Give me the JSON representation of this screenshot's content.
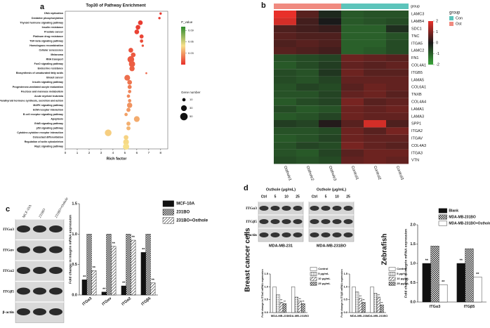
{
  "figure": {
    "panels": [
      "a",
      "b",
      "c",
      "d"
    ],
    "blot_c": {
      "columns": [
        "MCF-10A",
        "231BO",
        "231BO+Osthole"
      ],
      "rows": [
        "ITGα3",
        "ITGαv",
        "ITGα2",
        "ITGβ5",
        "β-actin"
      ]
    },
    "blot_d": {
      "groups": [
        {
          "title": "Osthole (μg/mL)",
          "cell_line": "MDA-MB-231"
        },
        {
          "title": "Osthole (μg/mL)",
          "cell_line": "MDA-MB-231BO"
        }
      ],
      "columns": [
        "Ctrl",
        "5",
        "10",
        "25"
      ],
      "rows": [
        "ITGα3",
        "ITGβ5",
        "β-actin"
      ]
    },
    "side_labels": [
      "Breast cancer cells",
      "Zebrafish"
    ]
  },
  "chart_data": [
    {
      "type": "bubble",
      "title": "Top30 of Pathway Enrichment",
      "x_label": "Rich factor",
      "categories": [
        "DNA replication",
        "Oxidative phosphorylation",
        "Thyroid hormone signaling pathway",
        "Insulin resistance",
        "Prostate cancer",
        "Platinum drug resistance",
        "TGF-beta signaling pathway",
        "Homologous recombination",
        "Cellular senescence",
        "Melanoma",
        "RNA transport",
        "FoxO signaling pathway",
        "Endocrine resistance",
        "Biosynthesis of unsaturated fatty acids",
        "Breast cancer",
        "Insulin signaling pathway",
        "Progesterone-mediated oocyte maturation",
        "Fructose and mannose metabolism",
        "Acute myeloid leukemia",
        "Parathyroid hormone synthesis, secretion and action",
        "MAPK signaling pathway",
        "ECM-receptor interaction",
        "B cell receptor signaling pathway",
        "Apoptosis",
        "ErbB signaling pathway",
        "p53 signaling pathway",
        "Cytokine-cytokine receptor interaction",
        "Osteoclast differentiation",
        "Regulation of actin cytoskeleton",
        "Rap1 signaling pathway"
      ],
      "values": [
        8.0,
        7.9,
        6.3,
        6.1,
        6.0,
        6.4,
        6.4,
        6.5,
        5.5,
        5.7,
        5.5,
        5.6,
        5.6,
        6.8,
        5.2,
        5.4,
        5.4,
        5.4,
        5.3,
        5.4,
        5.4,
        5.3,
        5.1,
        6.0,
        5.3,
        5.3,
        3.6,
        5.1,
        5.1,
        5.1
      ],
      "gene_numbers": [
        5,
        5,
        20,
        20,
        20,
        15,
        10,
        5,
        20,
        20,
        40,
        35,
        25,
        3,
        30,
        20,
        15,
        10,
        10,
        10,
        25,
        15,
        10,
        30,
        15,
        15,
        40,
        20,
        30,
        35
      ],
      "p_values": [
        0.002,
        0.003,
        0.003,
        0.004,
        0.005,
        0.006,
        0.008,
        0.01,
        0.01,
        0.012,
        0.012,
        0.013,
        0.014,
        0.015,
        0.018,
        0.02,
        0.022,
        0.024,
        0.025,
        0.027,
        0.028,
        0.03,
        0.032,
        0.035,
        0.036,
        0.038,
        0.045,
        0.046,
        0.048,
        0.05
      ],
      "xlim": [
        0,
        8.6
      ],
      "xticks": [
        0,
        1,
        2,
        3,
        4,
        5,
        6,
        7,
        8
      ],
      "color_title": "P_value",
      "colorscale": [
        "#e8302a",
        "#f7e08a",
        "#2e8b2e"
      ],
      "clim": [
        0,
        0.1
      ],
      "cticks": [
        0.03,
        0.06,
        0.09
      ],
      "size_title": "Gene number",
      "size_ticks": [
        10,
        30,
        50
      ]
    },
    {
      "type": "heatmap",
      "rows": [
        "LAMC3",
        "LAMB4",
        "SDC1",
        "TNC",
        "ITGA5",
        "LAMC2",
        "FN1",
        "COL4A1",
        "ITGB5",
        "LAMA5",
        "COL6A1",
        "TNXB",
        "COL4A4",
        "LAMA1",
        "LAMA3",
        "SPP1",
        "ITGA2",
        "ITGAV",
        "COL4A3",
        "ITGA3",
        "VTN"
      ],
      "columns": [
        "Osthole1",
        "Osthole2",
        "Osthole3",
        "Control1",
        "Control2",
        "Control3"
      ],
      "values": [
        [
          2,
          0.6,
          -0.2,
          -0.9,
          -0.8,
          -0.8
        ],
        [
          1.8,
          0.4,
          0,
          -0.9,
          -0.8,
          -0.7
        ],
        [
          0.5,
          0.4,
          0.3,
          -1,
          -1,
          -0.3
        ],
        [
          0.6,
          0.5,
          0.5,
          -1,
          -1,
          -0.8
        ],
        [
          0.5,
          0.6,
          0.5,
          -1,
          -1,
          -0.7
        ],
        [
          0.6,
          0.5,
          0.4,
          -1,
          -0.9,
          -0.7
        ],
        [
          -0.8,
          -0.7,
          -0.6,
          0.8,
          0.7,
          0.6
        ],
        [
          -0.9,
          -0.7,
          -0.5,
          0.7,
          0.6,
          0.7
        ],
        [
          -0.7,
          -0.8,
          -0.4,
          0.8,
          0.6,
          0.6
        ],
        [
          -0.7,
          -0.8,
          -0.6,
          0.7,
          0.7,
          0.7
        ],
        [
          -0.8,
          -0.6,
          -0.7,
          0.6,
          0.8,
          0.7
        ],
        [
          -0.8,
          -0.8,
          -0.6,
          0.7,
          0.8,
          0.6
        ],
        [
          -0.9,
          -0.7,
          -0.6,
          0.9,
          0.6,
          0.7
        ],
        [
          -0.7,
          -0.9,
          -0.8,
          0.8,
          0.7,
          0.8
        ],
        [
          -0.9,
          -0.8,
          -0.6,
          0.8,
          0.7,
          0.7
        ],
        [
          -0.5,
          -0.6,
          0.1,
          0.6,
          1.8,
          0.5
        ],
        [
          -0.8,
          -0.8,
          -0.7,
          0.8,
          0.6,
          0.9
        ],
        [
          -0.9,
          -0.8,
          -0.6,
          0.8,
          0.7,
          0.7
        ],
        [
          -0.8,
          -0.6,
          -0.7,
          0.9,
          0.7,
          0.6
        ],
        [
          -0.8,
          -0.9,
          -0.6,
          0.6,
          0.8,
          0.8
        ],
        [
          -0.7,
          -0.8,
          -0.7,
          0.7,
          0.8,
          0.7
        ]
      ],
      "colorscale": [
        "#3aa53a",
        "#1a1a1a",
        "#e8302a"
      ],
      "zlim": [
        -2,
        2
      ],
      "zticks": [
        2,
        1,
        0,
        -1,
        -2
      ],
      "group_title": "group",
      "groups": [
        {
          "name": "Con",
          "color": "#5cc4bb"
        },
        {
          "name": "Ost",
          "color": "#f08a80"
        }
      ],
      "column_groups": [
        "Ost",
        "Ost",
        "Ost",
        "Con",
        "Con",
        "Con"
      ]
    },
    {
      "type": "bar",
      "y_label": "Fold change in integrin mRNA expression",
      "categories": [
        "ITGα3",
        "ITGαv",
        "ITGα2",
        "ITGβ5"
      ],
      "series": [
        {
          "name": "MCF-10A",
          "color": "#111111",
          "values": [
            0.25,
            0.05,
            0.15,
            0.7
          ],
          "significance": [
            "**",
            "**",
            "**",
            "**"
          ]
        },
        {
          "name": "231BO",
          "color": "#ffffff",
          "pattern": "checker",
          "values": [
            1,
            1,
            1,
            1
          ]
        },
        {
          "name": "231BO+Osthole",
          "color": "#ffffff",
          "pattern": "hatch",
          "values": [
            0.4,
            0.8,
            0.9,
            0.2
          ],
          "significance": [
            "**",
            "**",
            "**",
            "**"
          ]
        }
      ],
      "ylim": [
        0,
        1.5
      ],
      "yticks": [
        {
          "value": 0,
          "label": "0.0"
        },
        0.5,
        {
          "value": 1,
          "label": "1.0"
        },
        1.5
      ],
      "rotate_categories": true
    },
    {
      "type": "bar",
      "y_label": "Fold change in ITGα3 mRNA expression",
      "categories": [
        "MDA-MB-231",
        "MDA-MB-231BO"
      ],
      "series": [
        {
          "name": "Control",
          "color": "#ffffff",
          "values": [
            1,
            1
          ]
        },
        {
          "name": "5 μg/mL",
          "color": "#ffffff",
          "pattern": "dots",
          "values": [
            0.7,
            0.6
          ]
        },
        {
          "name": "10 μg/mL",
          "color": "#ffffff",
          "pattern": "hatch",
          "values": [
            0.4,
            0.45
          ],
          "significance": [
            "**",
            "**"
          ]
        },
        {
          "name": "25 μg/mL",
          "color": "#ffffff",
          "pattern": "cross",
          "values": [
            0.35,
            0.35
          ],
          "significance": [
            "**",
            "**"
          ]
        }
      ],
      "ylim": [
        0,
        1.5
      ],
      "yticks": [
        {
          "value": 0,
          "label": "0.0"
        },
        0.5,
        {
          "value": 1,
          "label": "1.0"
        },
        1.5
      ]
    },
    {
      "type": "bar",
      "y_label": "Fold change in ITGβ5 mRNA expression",
      "categories": [
        "MDA-MB-231",
        "MDA-MB-231BO"
      ],
      "series": [
        {
          "name": "Control",
          "color": "#ffffff",
          "values": [
            1,
            1
          ]
        },
        {
          "name": "5 μg/mL",
          "color": "#ffffff",
          "pattern": "dots",
          "values": [
            0.8,
            0.75
          ]
        },
        {
          "name": "10 μg/mL",
          "color": "#ffffff",
          "pattern": "hatch",
          "values": [
            0.55,
            0.6
          ],
          "significance": [
            "**",
            "**"
          ]
        },
        {
          "name": "25 μg/mL",
          "color": "#ffffff",
          "pattern": "cross",
          "values": [
            0.4,
            0.3
          ],
          "significance": [
            "**",
            "**"
          ]
        }
      ],
      "ylim": [
        0,
        1.5
      ],
      "yticks": [
        {
          "value": 0,
          "label": "0.0"
        },
        0.5,
        {
          "value": 1,
          "label": "1.0"
        },
        1.5
      ]
    },
    {
      "type": "bar",
      "y_label": "Fold change in integrin mRNA expression",
      "categories": [
        "ITGα3",
        "ITGβ5"
      ],
      "series": [
        {
          "name": "Blank",
          "color": "#111111",
          "values": [
            1,
            1
          ],
          "significance": [
            "**",
            "**"
          ]
        },
        {
          "name": "MDA-MB-231BO",
          "color": "#ffffff",
          "pattern": "checker",
          "values": [
            1.45,
            1.38
          ]
        },
        {
          "name": "MDA-MB-231BO+Osthole",
          "color": "#ffffff",
          "values": [
            0.45,
            0.65
          ],
          "significance": [
            "**",
            "**"
          ]
        }
      ],
      "ylim": [
        0,
        2
      ],
      "yticks": [
        {
          "value": 0,
          "label": "0.0"
        },
        0.5,
        {
          "value": 1,
          "label": "1.0"
        },
        1.5,
        {
          "value": 2,
          "label": "2.0"
        }
      ]
    }
  ]
}
